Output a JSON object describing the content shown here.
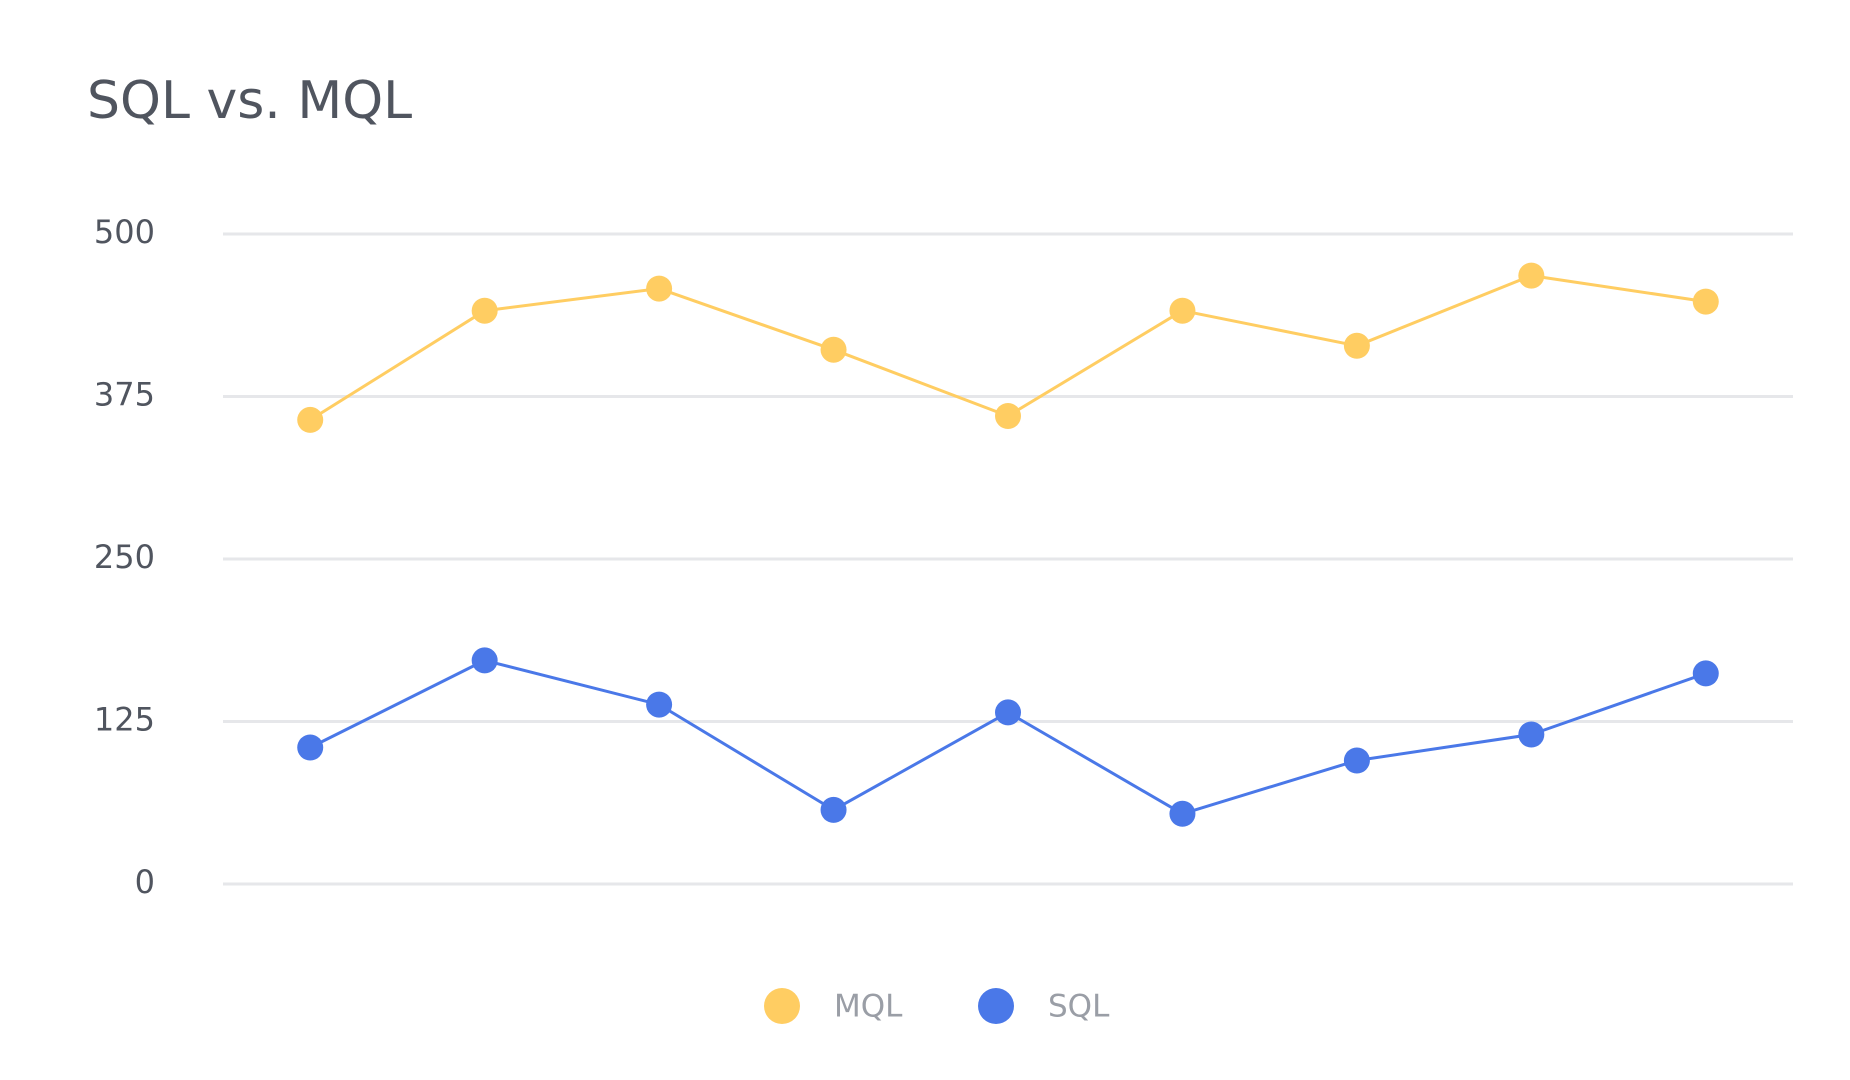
{
  "chart_data": {
    "type": "line",
    "title": "SQL vs. MQL",
    "categories": [
      null,
      null,
      null,
      null,
      null,
      null,
      null,
      null,
      null
    ],
    "series": [
      {
        "name": "MQL",
        "color": "#ffcd62",
        "values": [
          357,
          441,
          458,
          411,
          360,
          441,
          414,
          468,
          448
        ]
      },
      {
        "name": "SQL",
        "color": "#4a78e8",
        "values": [
          105,
          172,
          138,
          57,
          132,
          54,
          95,
          115,
          162
        ]
      }
    ],
    "ylim": [
      0,
      500
    ],
    "yticks": [
      0,
      125,
      250,
      375,
      500
    ],
    "grid": true,
    "legend": "bottom"
  }
}
